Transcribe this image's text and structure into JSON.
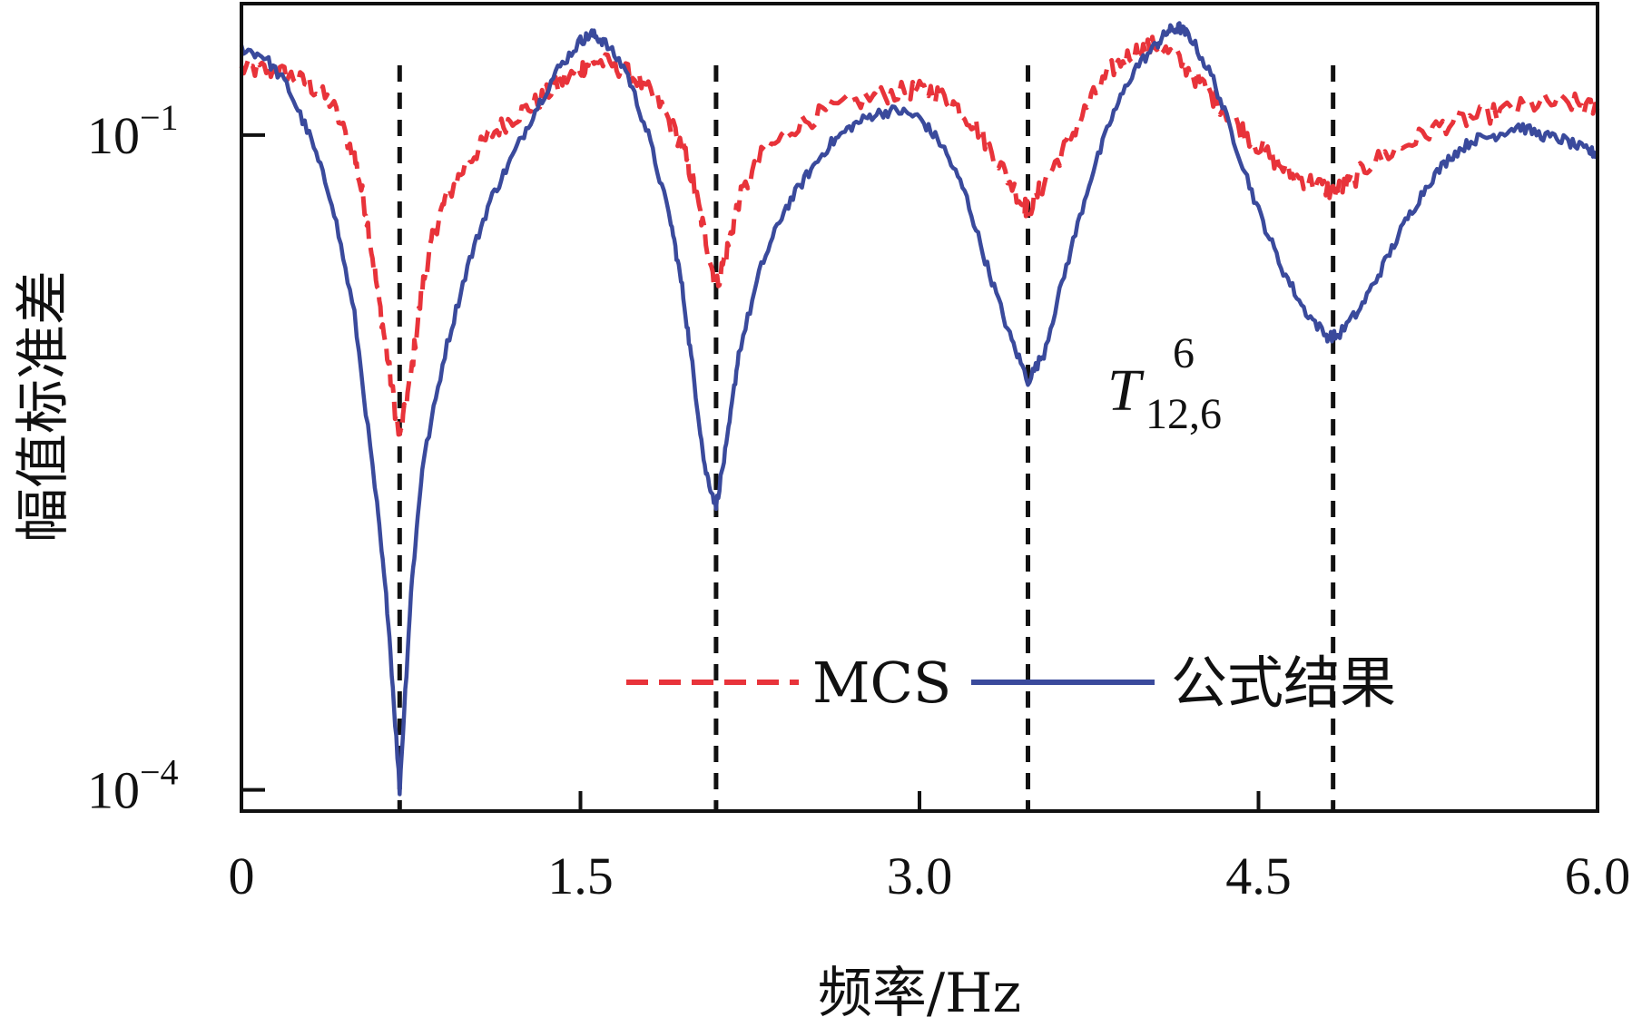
{
  "chart_data": {
    "type": "line",
    "xlabel": "频率/Hz",
    "ylabel": "幅值标准差",
    "xlim": [
      0,
      6.0
    ],
    "ylim": [
      8e-05,
      0.4
    ],
    "yscale": "log",
    "x_ticks": [
      "0",
      "1.5",
      "3.0",
      "4.5",
      "6.0"
    ],
    "x_tick_values": [
      0,
      1.5,
      3.0,
      4.5,
      6.0
    ],
    "y_ticks": [
      {
        "value": 0.1,
        "base": "10",
        "exp": "−1"
      },
      {
        "value": 0.0001,
        "base": "10",
        "exp": "−4"
      }
    ],
    "grid": false,
    "legend_position": "lower-right",
    "annotation": {
      "main": "T",
      "superscript": "6",
      "subscript": "12,6"
    },
    "vertical_lines": [
      0.7,
      2.1,
      3.48,
      4.83
    ],
    "series": [
      {
        "name": "MCS",
        "style": "dashed",
        "color": "#e8333a",
        "points": [
          [
            0.0,
            0.2
          ],
          [
            0.1,
            0.2
          ],
          [
            0.2,
            0.19
          ],
          [
            0.3,
            0.17
          ],
          [
            0.4,
            0.14
          ],
          [
            0.5,
            0.08
          ],
          [
            0.55,
            0.045
          ],
          [
            0.6,
            0.02
          ],
          [
            0.65,
            0.009
          ],
          [
            0.7,
            0.004
          ],
          [
            0.75,
            0.008
          ],
          [
            0.8,
            0.02
          ],
          [
            0.85,
            0.035
          ],
          [
            0.9,
            0.05
          ],
          [
            1.0,
            0.075
          ],
          [
            1.1,
            0.1
          ],
          [
            1.2,
            0.12
          ],
          [
            1.3,
            0.14
          ],
          [
            1.4,
            0.17
          ],
          [
            1.5,
            0.2
          ],
          [
            1.55,
            0.22
          ],
          [
            1.65,
            0.21
          ],
          [
            1.75,
            0.18
          ],
          [
            1.85,
            0.14
          ],
          [
            1.95,
            0.09
          ],
          [
            2.0,
            0.06
          ],
          [
            2.05,
            0.035
          ],
          [
            2.1,
            0.02
          ],
          [
            2.15,
            0.03
          ],
          [
            2.2,
            0.05
          ],
          [
            2.3,
            0.08
          ],
          [
            2.45,
            0.11
          ],
          [
            2.6,
            0.13
          ],
          [
            2.8,
            0.15
          ],
          [
            2.95,
            0.16
          ],
          [
            3.05,
            0.16
          ],
          [
            3.15,
            0.14
          ],
          [
            3.25,
            0.11
          ],
          [
            3.35,
            0.075
          ],
          [
            3.45,
            0.05
          ],
          [
            3.48,
            0.045
          ],
          [
            3.55,
            0.06
          ],
          [
            3.65,
            0.09
          ],
          [
            3.75,
            0.14
          ],
          [
            3.85,
            0.2
          ],
          [
            3.95,
            0.24
          ],
          [
            4.05,
            0.26
          ],
          [
            4.15,
            0.22
          ],
          [
            4.25,
            0.17
          ],
          [
            4.35,
            0.13
          ],
          [
            4.45,
            0.1
          ],
          [
            4.55,
            0.08
          ],
          [
            4.65,
            0.065
          ],
          [
            4.75,
            0.06
          ],
          [
            4.83,
            0.055
          ],
          [
            4.9,
            0.06
          ],
          [
            5.0,
            0.075
          ],
          [
            5.15,
            0.09
          ],
          [
            5.3,
            0.11
          ],
          [
            5.45,
            0.12
          ],
          [
            5.6,
            0.13
          ],
          [
            5.75,
            0.14
          ],
          [
            5.9,
            0.14
          ],
          [
            6.0,
            0.13
          ]
        ]
      },
      {
        "name": "公式结果",
        "style": "solid",
        "color": "#3a4a9c",
        "points": [
          [
            0.0,
            0.25
          ],
          [
            0.1,
            0.23
          ],
          [
            0.2,
            0.17
          ],
          [
            0.3,
            0.1
          ],
          [
            0.4,
            0.05
          ],
          [
            0.5,
            0.015
          ],
          [
            0.6,
            0.002
          ],
          [
            0.65,
            0.0006
          ],
          [
            0.7,
            0.0001
          ],
          [
            0.75,
            0.0008
          ],
          [
            0.8,
            0.003
          ],
          [
            0.9,
            0.01
          ],
          [
            1.0,
            0.025
          ],
          [
            1.1,
            0.05
          ],
          [
            1.2,
            0.08
          ],
          [
            1.3,
            0.13
          ],
          [
            1.4,
            0.2
          ],
          [
            1.5,
            0.27
          ],
          [
            1.55,
            0.29
          ],
          [
            1.6,
            0.27
          ],
          [
            1.7,
            0.2
          ],
          [
            1.8,
            0.1
          ],
          [
            1.9,
            0.04
          ],
          [
            1.95,
            0.02
          ],
          [
            2.0,
            0.008
          ],
          [
            2.05,
            0.003
          ],
          [
            2.1,
            0.002
          ],
          [
            2.15,
            0.004
          ],
          [
            2.2,
            0.01
          ],
          [
            2.3,
            0.025
          ],
          [
            2.4,
            0.045
          ],
          [
            2.5,
            0.065
          ],
          [
            2.6,
            0.09
          ],
          [
            2.7,
            0.11
          ],
          [
            2.8,
            0.125
          ],
          [
            2.9,
            0.13
          ],
          [
            3.0,
            0.12
          ],
          [
            3.1,
            0.09
          ],
          [
            3.2,
            0.055
          ],
          [
            3.3,
            0.025
          ],
          [
            3.4,
            0.012
          ],
          [
            3.48,
            0.0075
          ],
          [
            3.55,
            0.01
          ],
          [
            3.65,
            0.025
          ],
          [
            3.75,
            0.06
          ],
          [
            3.85,
            0.12
          ],
          [
            3.95,
            0.2
          ],
          [
            4.05,
            0.26
          ],
          [
            4.1,
            0.3
          ],
          [
            4.15,
            0.31
          ],
          [
            4.2,
            0.28
          ],
          [
            4.3,
            0.18
          ],
          [
            4.4,
            0.09
          ],
          [
            4.5,
            0.045
          ],
          [
            4.6,
            0.025
          ],
          [
            4.7,
            0.016
          ],
          [
            4.8,
            0.012
          ],
          [
            4.85,
            0.012
          ],
          [
            4.95,
            0.016
          ],
          [
            5.05,
            0.025
          ],
          [
            5.15,
            0.04
          ],
          [
            5.25,
            0.06
          ],
          [
            5.35,
            0.08
          ],
          [
            5.45,
            0.095
          ],
          [
            5.55,
            0.1
          ],
          [
            5.65,
            0.11
          ],
          [
            5.75,
            0.1
          ],
          [
            5.85,
            0.095
          ],
          [
            5.95,
            0.085
          ],
          [
            6.0,
            0.082
          ]
        ]
      }
    ]
  }
}
